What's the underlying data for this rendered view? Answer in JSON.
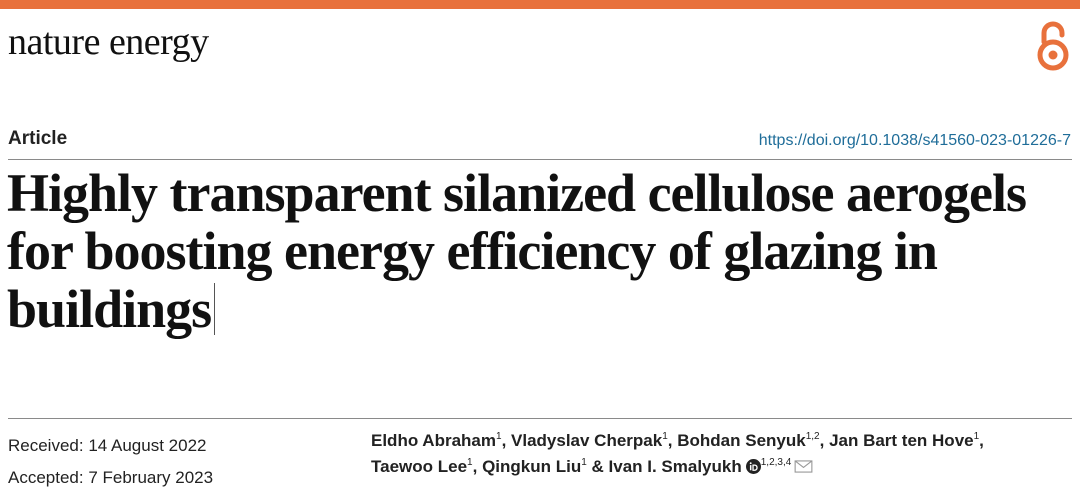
{
  "header": {
    "journal": "nature energy",
    "accent_color": "#e8713c",
    "open_access_icon": "open-lock-icon"
  },
  "article": {
    "type": "Article",
    "doi": "https://doi.org/10.1038/s41560-023-01226-7",
    "title": "Highly transparent silanized cellulose aerogels for boosting energy efficiency of glazing in buildings"
  },
  "dates": {
    "received": "Received: 14 August 2022",
    "accepted": "Accepted: 7 February 2023"
  },
  "authors": [
    {
      "name": "Eldho Abraham",
      "aff": "1",
      "sep": ", "
    },
    {
      "name": "Vladyslav Cherpak",
      "aff": "1",
      "sep": ", "
    },
    {
      "name": "Bohdan Senyuk",
      "aff": "1,2",
      "sep": ", "
    },
    {
      "name": "Jan Bart ten Hove",
      "aff": "1",
      "sep": ", "
    },
    {
      "name": "Taewoo Lee",
      "aff": "1",
      "sep": ", "
    },
    {
      "name": "Qingkun Liu",
      "aff": "1",
      "sep": " & "
    },
    {
      "name": "Ivan I. Smalyukh",
      "aff": "1,2,3,4",
      "sep": ""
    }
  ]
}
